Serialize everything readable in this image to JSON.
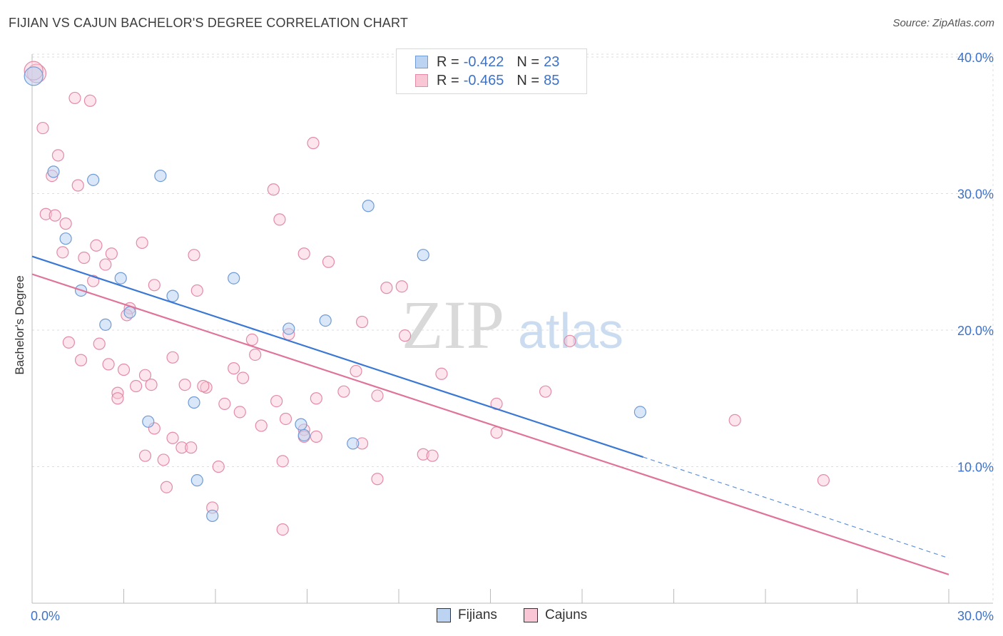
{
  "header": {
    "title": "FIJIAN VS CAJUN BACHELOR'S DEGREE CORRELATION CHART",
    "source": "Source: ZipAtlas.com"
  },
  "watermark": {
    "zip": "ZIP",
    "atlas": "atlas"
  },
  "legend": {
    "rows": [
      {
        "r_label": "R =",
        "r_value": "-0.422",
        "n_label": "N =",
        "n_value": "23",
        "color": "#6f9bd6"
      },
      {
        "r_label": "R =",
        "r_value": "-0.465",
        "n_label": "N =",
        "n_value": "85",
        "color": "#e38ba7"
      }
    ]
  },
  "bottom_legend": {
    "fijians": "Fijians",
    "cajuns": "Cajuns"
  },
  "colors": {
    "blue": "#3a78d4",
    "pink": "#e0739a",
    "tick_label": "#3d72c9",
    "grid": "#dddddd"
  },
  "chart_data": {
    "type": "scatter",
    "title": "FIJIAN VS CAJUN BACHELOR'S DEGREE CORRELATION CHART",
    "xlabel": "",
    "ylabel": "Bachelor's Degree",
    "xlim": [
      0,
      30
    ],
    "ylim": [
      0,
      40
    ],
    "x_tick_labels": {
      "min": "0.0%",
      "max": "30.0%"
    },
    "y_ticks": [
      10,
      20,
      30,
      40
    ],
    "y_tick_labels": [
      "10.0%",
      "20.0%",
      "30.0%",
      "40.0%"
    ],
    "grid": true,
    "series": [
      {
        "name": "Fijians",
        "color": "#6f9bd6",
        "points": [
          [
            0.05,
            38.6
          ],
          [
            0.7,
            31.6
          ],
          [
            2.0,
            31.0
          ],
          [
            4.2,
            31.3
          ],
          [
            11.0,
            29.1
          ],
          [
            1.1,
            26.7
          ],
          [
            12.8,
            25.5
          ],
          [
            1.6,
            22.9
          ],
          [
            2.9,
            23.8
          ],
          [
            4.6,
            22.5
          ],
          [
            6.6,
            23.8
          ],
          [
            3.2,
            21.3
          ],
          [
            9.6,
            20.7
          ],
          [
            2.4,
            20.4
          ],
          [
            8.4,
            20.1
          ],
          [
            19.9,
            14.0
          ],
          [
            3.8,
            13.3
          ],
          [
            5.3,
            14.7
          ],
          [
            8.8,
            13.1
          ],
          [
            8.9,
            12.3
          ],
          [
            10.5,
            11.7
          ],
          [
            5.4,
            9.0
          ],
          [
            5.9,
            6.4
          ]
        ]
      },
      {
        "name": "Cajuns",
        "color": "#e38ba7",
        "points": [
          [
            0.15,
            38.8
          ],
          [
            0.05,
            39.0
          ],
          [
            1.4,
            37.0
          ],
          [
            1.9,
            36.8
          ],
          [
            0.35,
            34.8
          ],
          [
            9.2,
            33.7
          ],
          [
            0.85,
            32.8
          ],
          [
            0.65,
            31.3
          ],
          [
            1.5,
            30.6
          ],
          [
            7.9,
            30.3
          ],
          [
            0.45,
            28.5
          ],
          [
            0.75,
            28.4
          ],
          [
            8.1,
            28.1
          ],
          [
            1.1,
            27.8
          ],
          [
            3.6,
            26.4
          ],
          [
            2.1,
            26.2
          ],
          [
            1.0,
            25.7
          ],
          [
            2.6,
            25.6
          ],
          [
            5.3,
            25.5
          ],
          [
            8.9,
            25.6
          ],
          [
            1.7,
            25.3
          ],
          [
            9.7,
            25.0
          ],
          [
            2.4,
            24.8
          ],
          [
            2.0,
            23.6
          ],
          [
            4.0,
            23.3
          ],
          [
            11.6,
            23.1
          ],
          [
            12.1,
            23.2
          ],
          [
            5.4,
            22.9
          ],
          [
            3.2,
            21.6
          ],
          [
            3.1,
            21.1
          ],
          [
            10.8,
            20.6
          ],
          [
            8.4,
            19.7
          ],
          [
            12.2,
            19.6
          ],
          [
            7.2,
            19.3
          ],
          [
            17.6,
            19.2
          ],
          [
            1.2,
            19.1
          ],
          [
            2.2,
            19.0
          ],
          [
            4.6,
            18.0
          ],
          [
            7.3,
            18.2
          ],
          [
            1.6,
            17.8
          ],
          [
            2.5,
            17.5
          ],
          [
            3.0,
            17.1
          ],
          [
            6.6,
            17.2
          ],
          [
            10.6,
            17.0
          ],
          [
            13.4,
            16.8
          ],
          [
            3.7,
            16.7
          ],
          [
            6.9,
            16.5
          ],
          [
            3.9,
            16.0
          ],
          [
            3.4,
            15.9
          ],
          [
            5.0,
            16.0
          ],
          [
            5.7,
            15.8
          ],
          [
            5.6,
            15.9
          ],
          [
            10.2,
            15.5
          ],
          [
            11.3,
            15.2
          ],
          [
            16.8,
            15.5
          ],
          [
            2.8,
            15.4
          ],
          [
            2.8,
            15.0
          ],
          [
            9.3,
            15.0
          ],
          [
            8.0,
            14.8
          ],
          [
            6.3,
            14.6
          ],
          [
            15.2,
            14.6
          ],
          [
            6.8,
            14.0
          ],
          [
            8.3,
            13.5
          ],
          [
            23.0,
            13.4
          ],
          [
            7.5,
            13.0
          ],
          [
            4.0,
            12.8
          ],
          [
            8.9,
            12.7
          ],
          [
            15.2,
            12.5
          ],
          [
            8.9,
            12.2
          ],
          [
            9.3,
            12.2
          ],
          [
            4.6,
            12.1
          ],
          [
            10.8,
            11.7
          ],
          [
            4.9,
            11.4
          ],
          [
            5.2,
            11.4
          ],
          [
            12.8,
            10.9
          ],
          [
            13.1,
            10.8
          ],
          [
            3.7,
            10.8
          ],
          [
            4.3,
            10.5
          ],
          [
            8.2,
            10.4
          ],
          [
            6.1,
            10.0
          ],
          [
            11.3,
            9.1
          ],
          [
            25.9,
            9.0
          ],
          [
            4.4,
            8.5
          ],
          [
            5.9,
            7.0
          ],
          [
            8.2,
            5.4
          ]
        ]
      }
    ],
    "trend_lines": [
      {
        "series": "Fijians",
        "x": [
          0,
          20
        ],
        "y": [
          25.4,
          10.7
        ],
        "dashed_extension_to_x": 30,
        "dashed_extension_y": 3.3
      },
      {
        "series": "Cajuns",
        "x": [
          0,
          30
        ],
        "y": [
          24.1,
          2.1
        ]
      }
    ]
  }
}
